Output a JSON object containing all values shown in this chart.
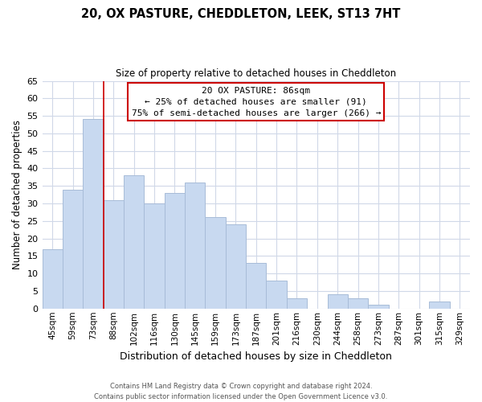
{
  "title": "20, OX PASTURE, CHEDDLETON, LEEK, ST13 7HT",
  "subtitle": "Size of property relative to detached houses in Cheddleton",
  "xlabel": "Distribution of detached houses by size in Cheddleton",
  "ylabel": "Number of detached properties",
  "bar_labels": [
    "45sqm",
    "59sqm",
    "73sqm",
    "88sqm",
    "102sqm",
    "116sqm",
    "130sqm",
    "145sqm",
    "159sqm",
    "173sqm",
    "187sqm",
    "201sqm",
    "216sqm",
    "230sqm",
    "244sqm",
    "258sqm",
    "273sqm",
    "287sqm",
    "301sqm",
    "315sqm",
    "329sqm"
  ],
  "bar_values": [
    17,
    34,
    54,
    31,
    38,
    30,
    33,
    36,
    26,
    24,
    13,
    8,
    3,
    0,
    4,
    3,
    1,
    0,
    0,
    2,
    0
  ],
  "bar_color": "#c8d9f0",
  "bar_edge_color": "#a8bcd8",
  "highlight_index": 3,
  "highlight_line_color": "#cc0000",
  "ylim": [
    0,
    65
  ],
  "yticks": [
    0,
    5,
    10,
    15,
    20,
    25,
    30,
    35,
    40,
    45,
    50,
    55,
    60,
    65
  ],
  "annotation_title": "20 OX PASTURE: 86sqm",
  "annotation_line1": "← 25% of detached houses are smaller (91)",
  "annotation_line2": "75% of semi-detached houses are larger (266) →",
  "annotation_box_color": "#ffffff",
  "annotation_box_edge": "#cc0000",
  "footer1": "Contains HM Land Registry data © Crown copyright and database right 2024.",
  "footer2": "Contains public sector information licensed under the Open Government Licence v3.0.",
  "background_color": "#ffffff",
  "grid_color": "#d0d8e8"
}
